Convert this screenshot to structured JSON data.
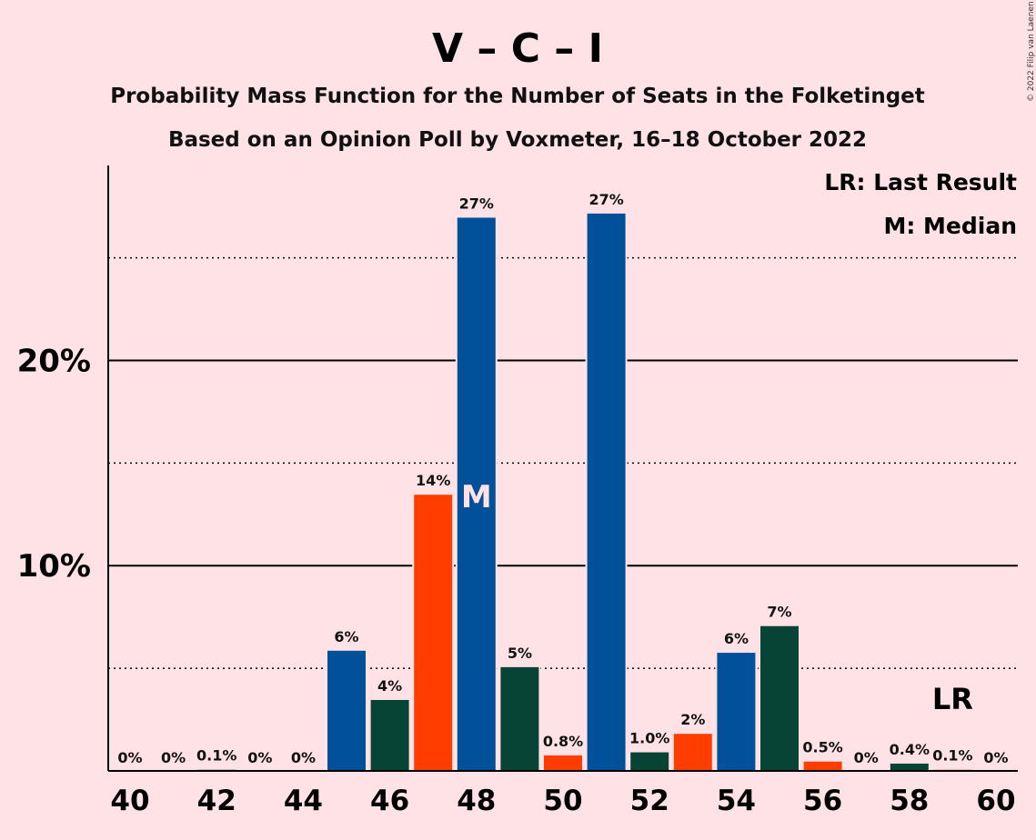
{
  "chart_data": {
    "type": "bar",
    "title": "V – C – I",
    "subtitle": "Probability Mass Function for the Number of Seats in the Folketinget",
    "subtitle2": "Based on an Opinion Poll by Voxmeter, 16–18 October 2022",
    "copyright": "© 2022 Filip van Laenen",
    "legend": [
      "LR: Last Result",
      "M: Median"
    ],
    "legend_placement": "top-right",
    "x": [
      40,
      41,
      42,
      43,
      44,
      45,
      46,
      47,
      48,
      49,
      50,
      51,
      52,
      53,
      54,
      55,
      56,
      57,
      58,
      59,
      60
    ],
    "values": [
      0,
      0,
      0.1,
      0,
      0,
      5.9,
      3.5,
      13.5,
      27,
      5.1,
      0.8,
      27.2,
      0.95,
      1.85,
      5.8,
      7.1,
      0.5,
      0,
      0.4,
      0.1,
      0
    ],
    "labels": [
      "0%",
      "0%",
      "0.1%",
      "0%",
      "0%",
      "6%",
      "4%",
      "14%",
      "27%",
      "5%",
      "0.8%",
      "27%",
      "1.0%",
      "2%",
      "6%",
      "7%",
      "0.5%",
      "0%",
      "0.4%",
      "0.1%",
      "0%"
    ],
    "colors": [
      "#00519A",
      "#00519A",
      "#074436",
      "#FF3D00",
      "#00519A",
      "#00519A",
      "#074436",
      "#FF3D00",
      "#00519A",
      "#074436",
      "#FF3D00",
      "#00519A",
      "#074436",
      "#FF3D00",
      "#00519A",
      "#074436",
      "#FF3D00",
      "#00519A",
      "#074436",
      "#FF3D00",
      "#00519A"
    ],
    "xtick_labels": [
      "40",
      "42",
      "44",
      "46",
      "48",
      "50",
      "52",
      "54",
      "56",
      "58",
      "60"
    ],
    "ytick_labels": [
      "10%",
      "20%"
    ],
    "ylim": [
      0,
      29.5
    ],
    "grid_solid": [
      10,
      20
    ],
    "grid_dotted": [
      5,
      15,
      25
    ],
    "median": {
      "x": 48,
      "mark": "M"
    },
    "last_result": {
      "x": 59,
      "mark": "LR"
    }
  }
}
